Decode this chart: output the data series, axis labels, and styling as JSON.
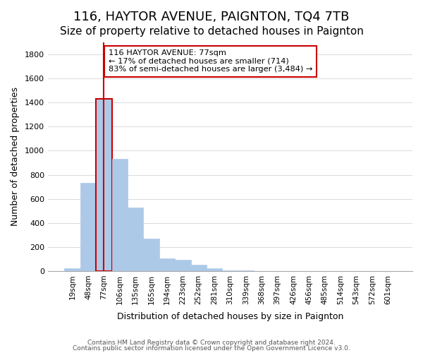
{
  "title": "116, HAYTOR AVENUE, PAIGNTON, TQ4 7TB",
  "subtitle": "Size of property relative to detached houses in Paignton",
  "xlabel": "Distribution of detached houses by size in Paignton",
  "ylabel": "Number of detached properties",
  "footer_lines": [
    "Contains HM Land Registry data © Crown copyright and database right 2024.",
    "Contains public sector information licensed under the Open Government Licence v3.0."
  ],
  "bin_labels": [
    "19sqm",
    "48sqm",
    "77sqm",
    "106sqm",
    "135sqm",
    "165sqm",
    "194sqm",
    "223sqm",
    "252sqm",
    "281sqm",
    "310sqm",
    "339sqm",
    "368sqm",
    "397sqm",
    "426sqm",
    "456sqm",
    "485sqm",
    "514sqm",
    "543sqm",
    "572sqm",
    "601sqm"
  ],
  "bar_values": [
    20,
    735,
    1430,
    935,
    530,
    270,
    103,
    92,
    50,
    25,
    5,
    5,
    0,
    0,
    0,
    0,
    0,
    0,
    0,
    0,
    0
  ],
  "bar_color": "#adc9e8",
  "highlight_bar_index": 2,
  "highlight_color": "#cc0000",
  "vline_color": "#cc0000",
  "annotation_title": "116 HAYTOR AVENUE: 77sqm",
  "annotation_line1": "← 17% of detached houses are smaller (714)",
  "annotation_line2": "83% of semi-detached houses are larger (3,484) →",
  "ylim": [
    0,
    1900
  ],
  "yticks": [
    0,
    200,
    400,
    600,
    800,
    1000,
    1200,
    1400,
    1600,
    1800
  ],
  "grid_color": "#dddddd",
  "background_color": "#ffffff",
  "title_fontsize": 13,
  "subtitle_fontsize": 11
}
